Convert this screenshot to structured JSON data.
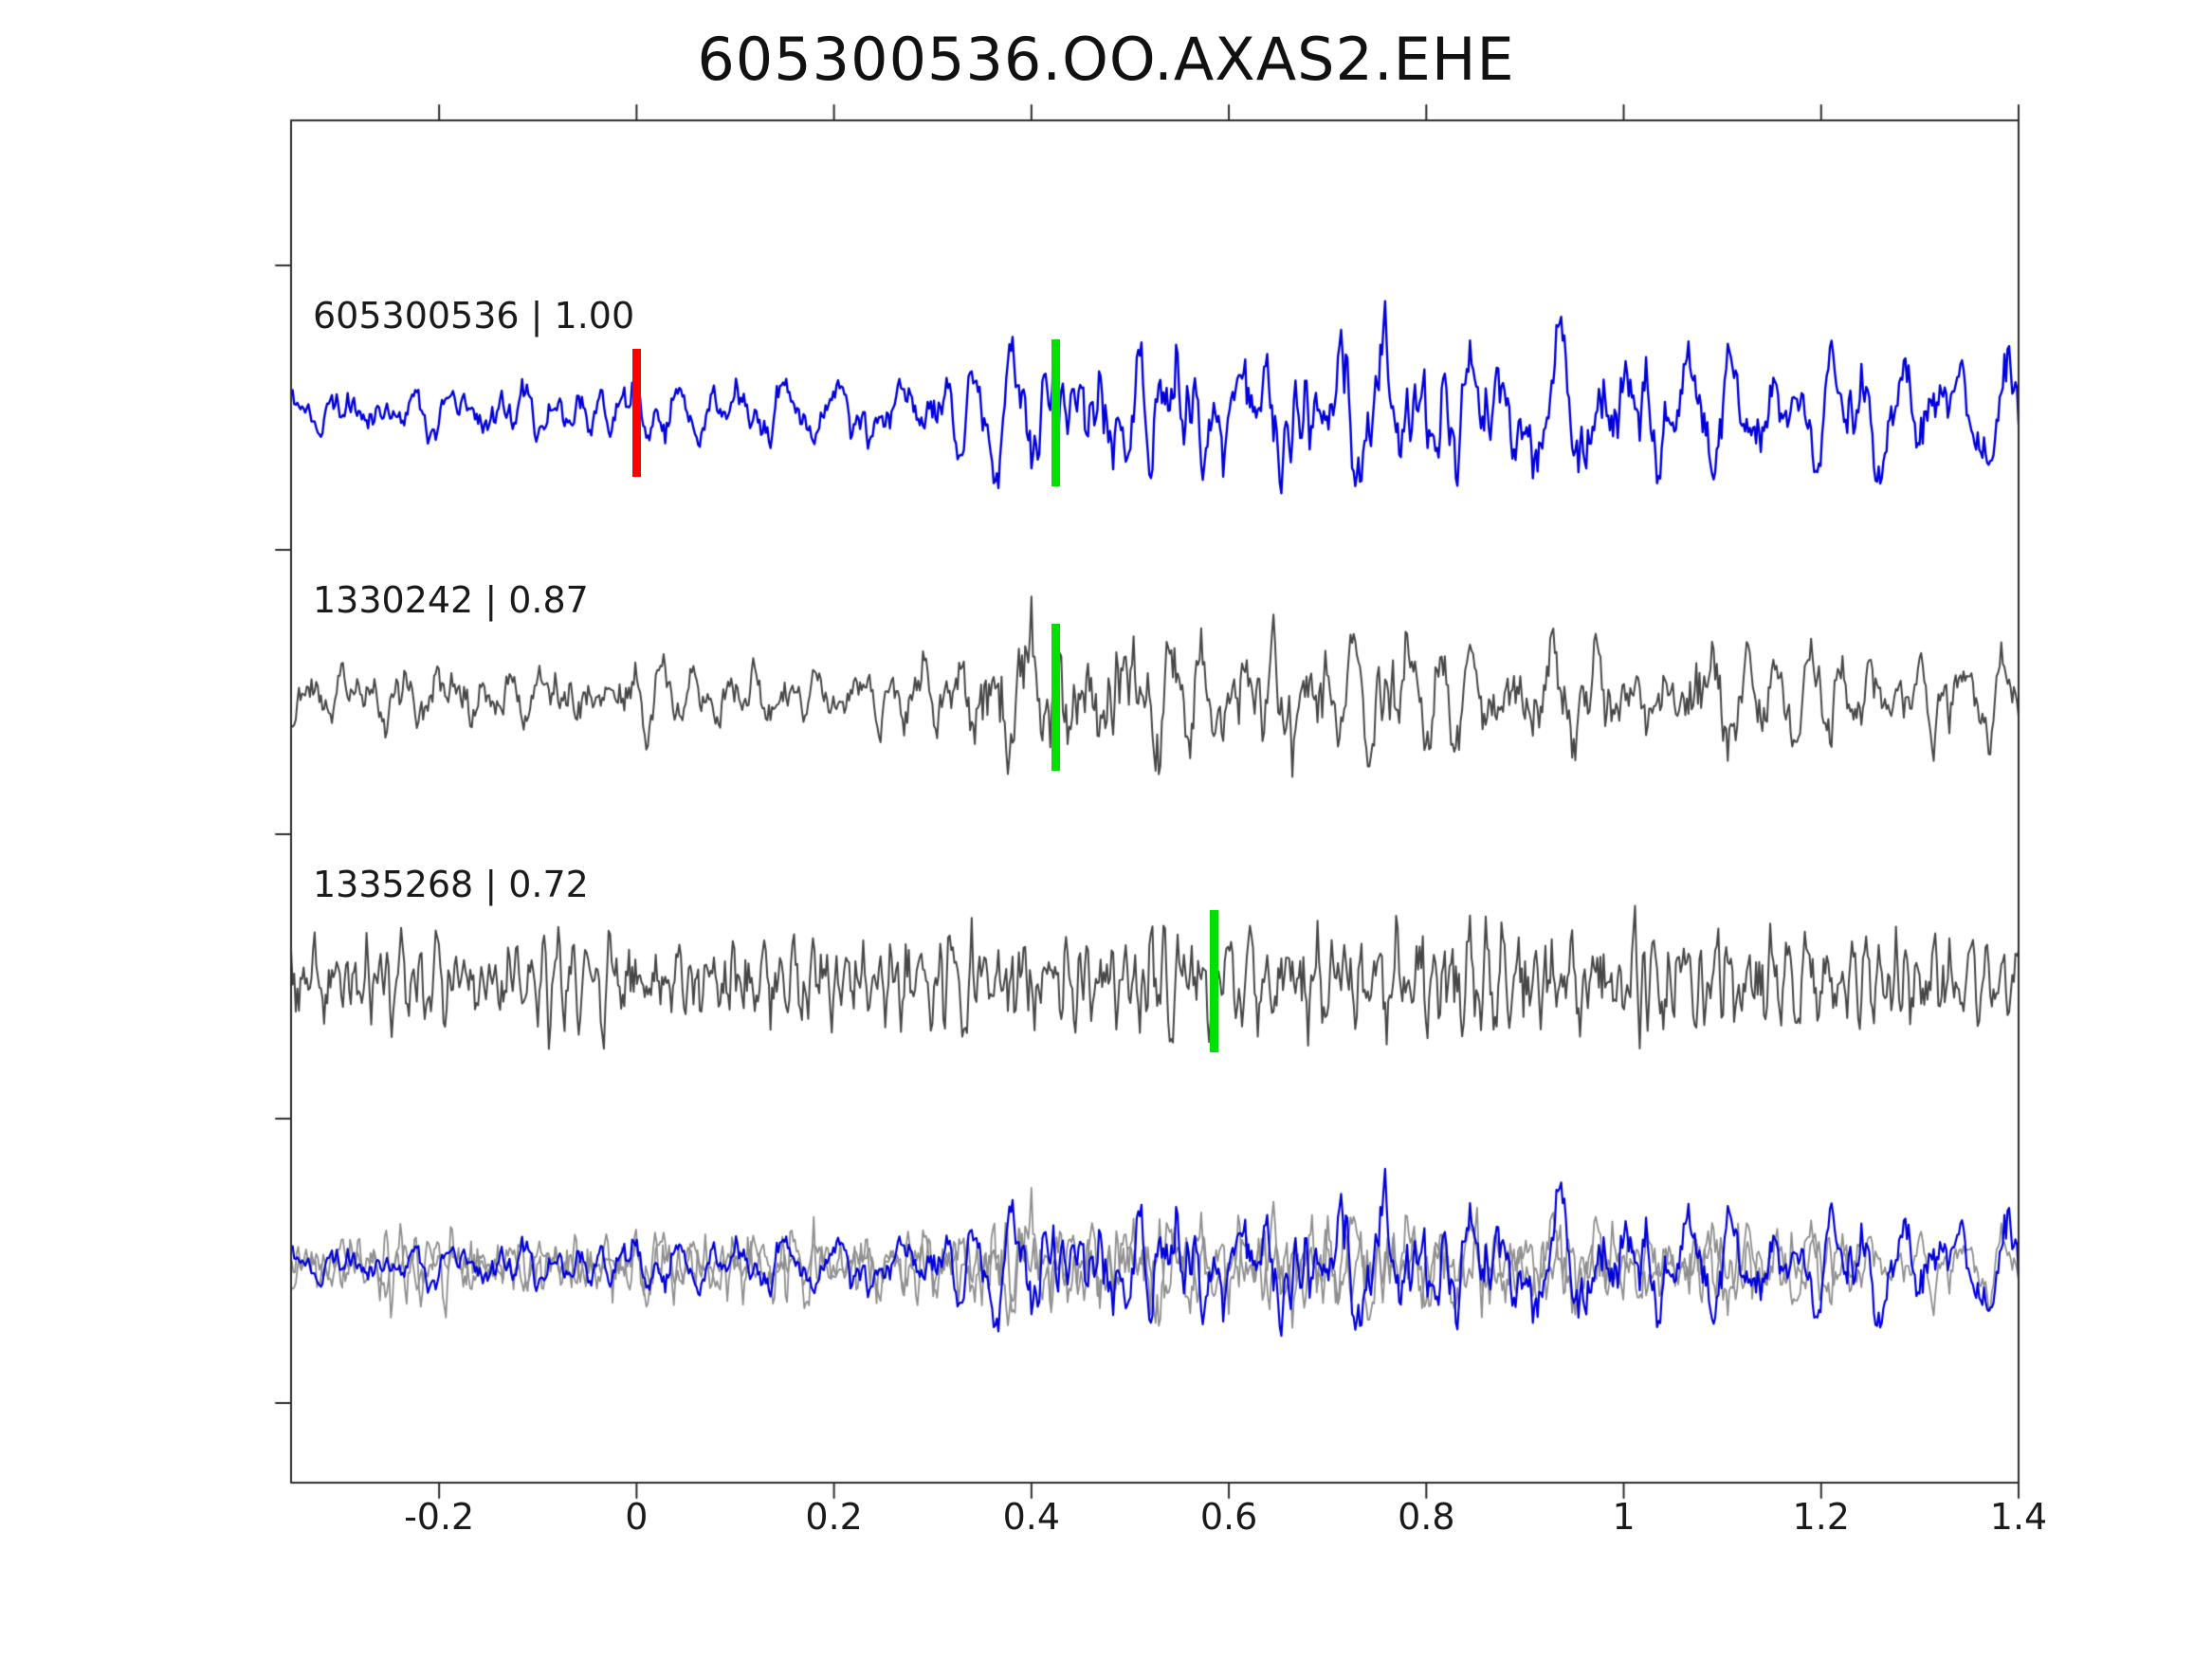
{
  "chart_data": {
    "type": "line",
    "title": "605300536.OO.AXAS2.EHE",
    "xlabel": "",
    "ylabel": "",
    "xlim": [
      -0.35,
      1.4
    ],
    "xticks": [
      -0.2,
      0,
      0.2,
      0.4,
      0.6,
      0.8,
      1,
      1.2,
      1.4
    ],
    "xtick_labels": [
      "-0.2",
      "0",
      "0.2",
      "0.4",
      "0.6",
      "0.8",
      "1",
      "1.2",
      "1.4"
    ],
    "grid": false,
    "legend": "none",
    "colors": {
      "template_blue": "#0000dd",
      "detection_gray": "#474747",
      "overlay_gray": "#8f8f8f",
      "pick_red": "#ff0000",
      "pick_green": "#00e000",
      "frame": "#2b2b2b"
    },
    "traces": [
      {
        "name": "template-605300536",
        "event_id": "605300536",
        "correlation": 1.0,
        "label": "605300536 | 1.00",
        "row": 0,
        "color": "#0000dd",
        "line_width": 2.4,
        "seed": 11,
        "w1": 8,
        "w2": 40,
        "amp": 92,
        "xshift": 0,
        "envelope": [
          [
            -0.35,
            0.5
          ],
          [
            0.25,
            0.55
          ],
          [
            0.38,
            1.0
          ],
          [
            0.55,
            1.35
          ],
          [
            0.8,
            1.3
          ],
          [
            1.0,
            1.0
          ],
          [
            1.4,
            0.95
          ]
        ],
        "picks": [
          {
            "x": 0.0,
            "color": "#ff0000",
            "h": 135,
            "w": 9
          },
          {
            "x": 0.425,
            "color": "#00e000",
            "h": 155,
            "w": 9
          }
        ]
      },
      {
        "name": "detection-1330242",
        "event_id": "1330242",
        "correlation": 0.87,
        "label": "1330242 | 0.87",
        "row": 1,
        "color": "#474747",
        "line_width": 2,
        "seed": 23,
        "w1": 6,
        "w2": 30,
        "amp": 85,
        "xshift": 0,
        "envelope": [
          [
            -0.35,
            0.6
          ],
          [
            0.3,
            0.7
          ],
          [
            0.4,
            1.35
          ],
          [
            0.55,
            1.2
          ],
          [
            0.75,
            1.1
          ],
          [
            1.4,
            0.85
          ]
        ],
        "picks": [
          {
            "x": 0.425,
            "color": "#00e000",
            "h": 155,
            "w": 9
          }
        ]
      },
      {
        "name": "detection-1335268",
        "event_id": "1335268",
        "correlation": 0.72,
        "label": "1335268 | 0.72",
        "row": 2,
        "color": "#474747",
        "line_width": 2,
        "seed": 37,
        "w1": 3,
        "w2": 14,
        "amp": 78,
        "xshift": 0,
        "envelope": [
          [
            -0.35,
            0.85
          ],
          [
            0.45,
            1.05
          ],
          [
            0.95,
            1.15
          ],
          [
            1.4,
            0.95
          ]
        ],
        "picks": [
          {
            "x": 0.585,
            "color": "#00e000",
            "h": 150,
            "w": 9
          }
        ]
      },
      {
        "name": "overlay-gray-1330242",
        "label": "",
        "row": 3,
        "color": "#8f8f8f",
        "line_width": 1.8,
        "seed": 23,
        "w1": 6,
        "w2": 30,
        "amp": 66,
        "xshift": 0,
        "envelope": [
          [
            -0.35,
            0.6
          ],
          [
            0.3,
            0.7
          ],
          [
            0.4,
            1.35
          ],
          [
            0.55,
            1.2
          ],
          [
            0.75,
            1.1
          ],
          [
            1.4,
            0.85
          ]
        ],
        "picks": []
      },
      {
        "name": "overlay-gray-1335268",
        "label": "",
        "row": 3,
        "color": "#8f8f8f",
        "line_width": 1.8,
        "seed": 37,
        "w1": 3,
        "w2": 14,
        "amp": 60,
        "xshift": -0.16,
        "envelope": [
          [
            -0.35,
            0.85
          ],
          [
            0.45,
            1.05
          ],
          [
            0.95,
            1.15
          ],
          [
            1.4,
            0.95
          ]
        ],
        "picks": []
      },
      {
        "name": "overlay-template-605300536",
        "label": "",
        "row": 3,
        "color": "#0000dd",
        "line_width": 2.2,
        "seed": 11,
        "w1": 8,
        "w2": 40,
        "amp": 80,
        "xshift": 0,
        "envelope": [
          [
            -0.35,
            0.5
          ],
          [
            0.25,
            0.55
          ],
          [
            0.38,
            1.0
          ],
          [
            0.55,
            1.35
          ],
          [
            0.8,
            1.3
          ],
          [
            1.0,
            1.0
          ],
          [
            1.4,
            0.95
          ]
        ],
        "picks": []
      }
    ]
  }
}
